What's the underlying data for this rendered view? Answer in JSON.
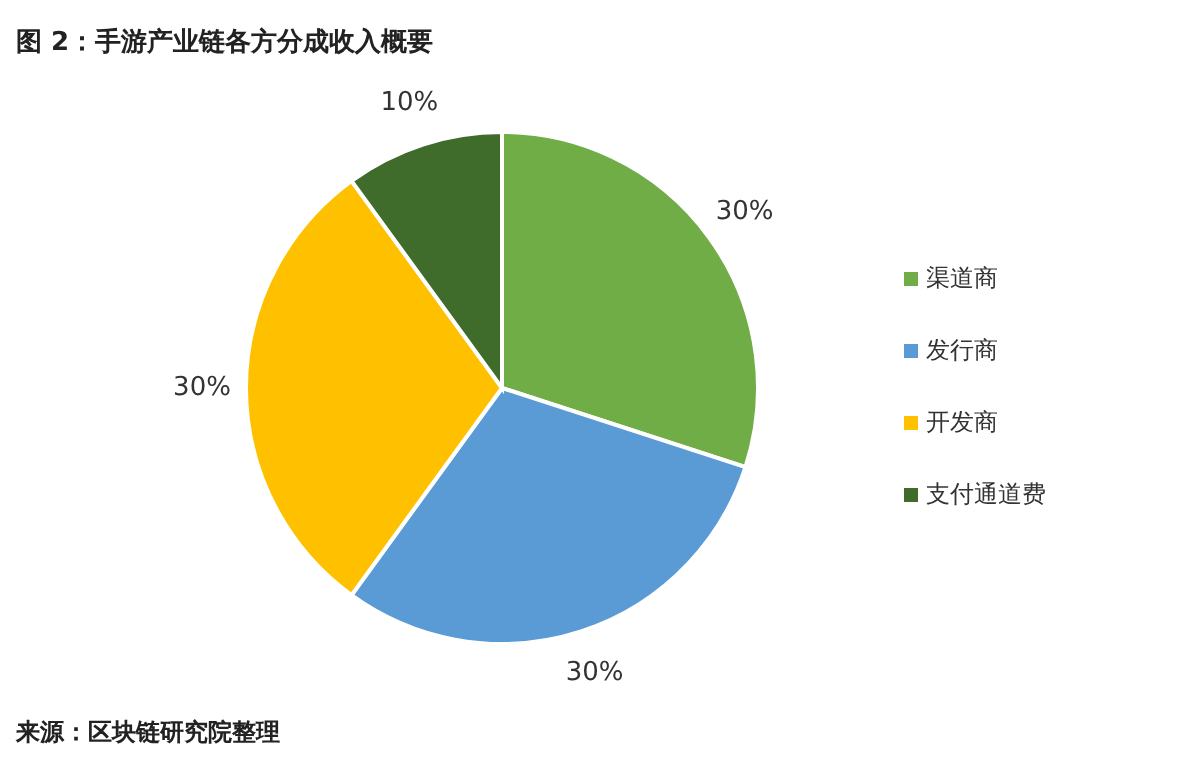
{
  "chart_data": {
    "type": "pie",
    "title": "图 2：手游产业链各方分成收入概要",
    "categories": [
      "渠道商",
      "发行商",
      "开发商",
      "支付通道费"
    ],
    "values": [
      30,
      30,
      30,
      10
    ],
    "value_labels": [
      "30%",
      "30%",
      "30%",
      "10%"
    ],
    "colors": [
      "#70ad47",
      "#5b9bd5",
      "#ffc000",
      "#3f6b2b"
    ],
    "legend": "right",
    "annotations": [
      "来源：区块链研究院整理"
    ]
  }
}
